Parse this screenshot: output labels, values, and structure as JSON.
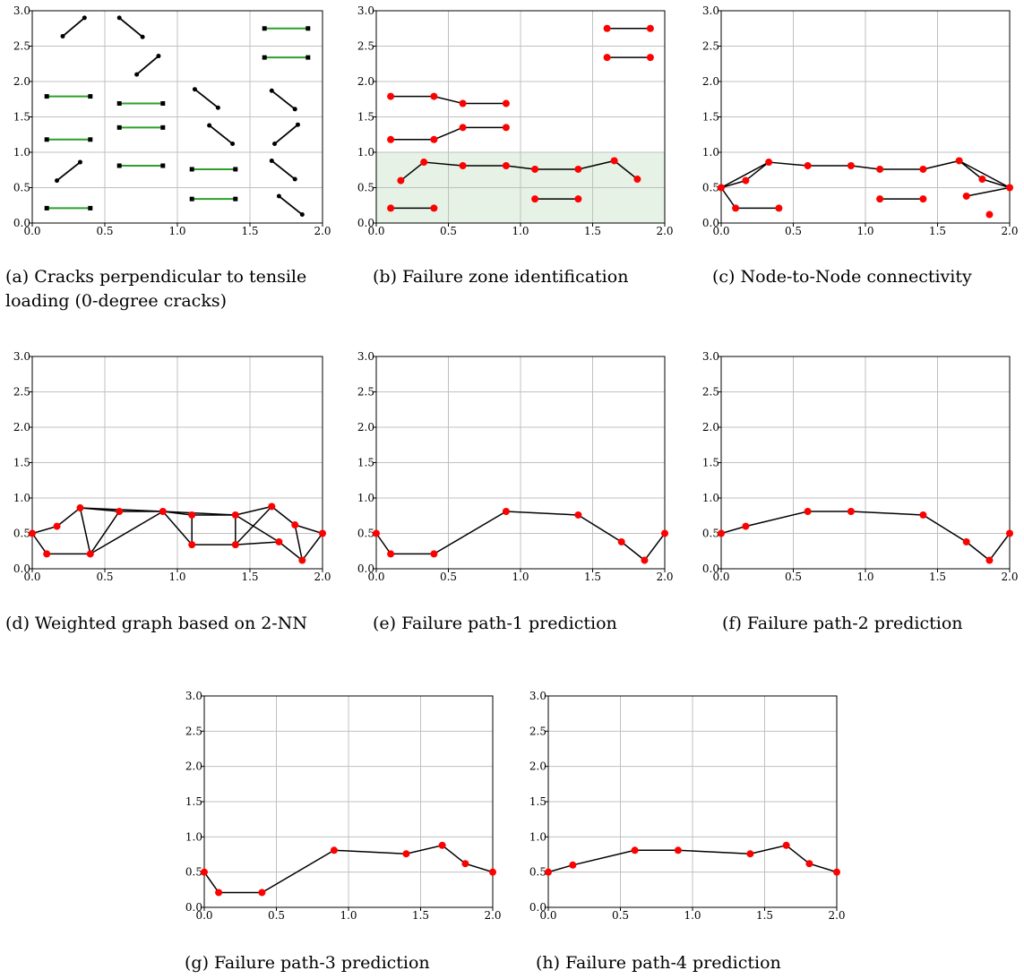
{
  "colors": {
    "node": "#ff0000",
    "edge": "#000000",
    "horizontal_crack": "#2ca02c",
    "crack_end_marker": "#000000",
    "failure_zone": "#e6f2e6",
    "grid": "#c0c0c0"
  },
  "chart_data": [
    {
      "type": "scatter",
      "subplot": "a",
      "caption": "(a) Cracks perpendicular to tensile loading (0-degree cracks)",
      "xlim": [
        0,
        2.0
      ],
      "ylim": [
        0,
        3.0
      ],
      "x_ticks": [
        "0.0",
        "0.5",
        "1.0",
        "1.5",
        "2.0"
      ],
      "y_ticks": [
        "0.0",
        "0.5",
        "1.0",
        "1.5",
        "2.0",
        "2.5",
        "3.0"
      ],
      "grid": true,
      "horizontal_cracks": [
        [
          [
            0.1,
            1.79
          ],
          [
            0.4,
            1.79
          ]
        ],
        [
          [
            0.1,
            1.18
          ],
          [
            0.4,
            1.18
          ]
        ],
        [
          [
            0.1,
            0.21
          ],
          [
            0.4,
            0.21
          ]
        ],
        [
          [
            0.6,
            1.69
          ],
          [
            0.9,
            1.69
          ]
        ],
        [
          [
            0.6,
            1.35
          ],
          [
            0.9,
            1.35
          ]
        ],
        [
          [
            0.6,
            0.81
          ],
          [
            0.9,
            0.81
          ]
        ],
        [
          [
            1.1,
            0.76
          ],
          [
            1.4,
            0.76
          ]
        ],
        [
          [
            1.1,
            0.34
          ],
          [
            1.4,
            0.34
          ]
        ],
        [
          [
            1.6,
            2.75
          ],
          [
            1.9,
            2.75
          ]
        ],
        [
          [
            1.6,
            2.34
          ],
          [
            1.9,
            2.34
          ]
        ]
      ],
      "inclined_cracks": [
        [
          [
            0.21,
            2.64
          ],
          [
            0.36,
            2.9
          ]
        ],
        [
          [
            0.6,
            2.9
          ],
          [
            0.76,
            2.63
          ]
        ],
        [
          [
            0.72,
            2.1
          ],
          [
            0.87,
            2.36
          ]
        ],
        [
          [
            0.17,
            0.6
          ],
          [
            0.33,
            0.86
          ]
        ],
        [
          [
            1.12,
            1.89
          ],
          [
            1.28,
            1.63
          ]
        ],
        [
          [
            1.22,
            1.38
          ],
          [
            1.38,
            1.12
          ]
        ],
        [
          [
            1.65,
            1.87
          ],
          [
            1.81,
            1.61
          ]
        ],
        [
          [
            1.67,
            1.12
          ],
          [
            1.83,
            1.39
          ]
        ],
        [
          [
            1.65,
            0.88
          ],
          [
            1.81,
            0.62
          ]
        ],
        [
          [
            1.7,
            0.38
          ],
          [
            1.86,
            0.12
          ]
        ]
      ]
    },
    {
      "type": "scatter",
      "subplot": "b",
      "caption": "(b) Failure zone identification",
      "xlim": [
        0,
        2.0
      ],
      "ylim": [
        0,
        3.0
      ],
      "x_ticks": [
        "0.0",
        "0.5",
        "1.0",
        "1.5",
        "2.0"
      ],
      "y_ticks": [
        "0.0",
        "0.5",
        "1.0",
        "1.5",
        "2.0",
        "2.5",
        "3.0"
      ],
      "grid": true,
      "failure_zone": {
        "x": [
          0,
          2.0
        ],
        "y": [
          0,
          1.0
        ]
      },
      "segments": [
        [
          [
            0.1,
            1.79
          ],
          [
            0.4,
            1.79
          ]
        ],
        [
          [
            0.4,
            1.79
          ],
          [
            0.6,
            1.69
          ]
        ],
        [
          [
            0.6,
            1.69
          ],
          [
            0.9,
            1.69
          ]
        ],
        [
          [
            0.1,
            1.18
          ],
          [
            0.4,
            1.18
          ]
        ],
        [
          [
            0.4,
            1.18
          ],
          [
            0.6,
            1.35
          ]
        ],
        [
          [
            0.6,
            1.35
          ],
          [
            0.9,
            1.35
          ]
        ],
        [
          [
            0.17,
            0.6
          ],
          [
            0.33,
            0.86
          ]
        ],
        [
          [
            0.33,
            0.86
          ],
          [
            0.6,
            0.81
          ]
        ],
        [
          [
            0.6,
            0.81
          ],
          [
            0.9,
            0.81
          ]
        ],
        [
          [
            0.9,
            0.81
          ],
          [
            1.1,
            0.76
          ]
        ],
        [
          [
            1.1,
            0.76
          ],
          [
            1.4,
            0.76
          ]
        ],
        [
          [
            1.4,
            0.76
          ],
          [
            1.65,
            0.88
          ]
        ],
        [
          [
            1.65,
            0.88
          ],
          [
            1.81,
            0.62
          ]
        ],
        [
          [
            0.1,
            0.21
          ],
          [
            0.4,
            0.21
          ]
        ],
        [
          [
            1.1,
            0.34
          ],
          [
            1.4,
            0.34
          ]
        ],
        [
          [
            1.6,
            2.75
          ],
          [
            1.9,
            2.75
          ]
        ],
        [
          [
            1.6,
            2.34
          ],
          [
            1.9,
            2.34
          ]
        ]
      ],
      "nodes": [
        [
          0.1,
          1.79
        ],
        [
          0.4,
          1.79
        ],
        [
          0.6,
          1.69
        ],
        [
          0.9,
          1.69
        ],
        [
          0.1,
          1.18
        ],
        [
          0.4,
          1.18
        ],
        [
          0.6,
          1.35
        ],
        [
          0.9,
          1.35
        ],
        [
          0.17,
          0.6
        ],
        [
          0.33,
          0.86
        ],
        [
          0.6,
          0.81
        ],
        [
          0.9,
          0.81
        ],
        [
          1.1,
          0.76
        ],
        [
          1.4,
          0.76
        ],
        [
          1.65,
          0.88
        ],
        [
          1.81,
          0.62
        ],
        [
          0.1,
          0.21
        ],
        [
          0.4,
          0.21
        ],
        [
          1.1,
          0.34
        ],
        [
          1.4,
          0.34
        ],
        [
          1.6,
          2.75
        ],
        [
          1.9,
          2.75
        ],
        [
          1.6,
          2.34
        ],
        [
          1.9,
          2.34
        ]
      ]
    },
    {
      "type": "scatter",
      "subplot": "c",
      "caption": "(c) Node-to-Node connectivity",
      "xlim": [
        0,
        2.0
      ],
      "ylim": [
        0,
        3.0
      ],
      "x_ticks": [
        "0.0",
        "0.5",
        "1.0",
        "1.5",
        "2.0"
      ],
      "y_ticks": [
        "0.0",
        "0.5",
        "1.0",
        "1.5",
        "2.0",
        "2.5",
        "3.0"
      ],
      "grid": true,
      "segments": [
        [
          [
            0,
            0.5
          ],
          [
            0.17,
            0.6
          ]
        ],
        [
          [
            0,
            0.5
          ],
          [
            0.33,
            0.86
          ]
        ],
        [
          [
            0,
            0.5
          ],
          [
            0.1,
            0.21
          ]
        ],
        [
          [
            0.17,
            0.6
          ],
          [
            0.33,
            0.86
          ]
        ],
        [
          [
            0.1,
            0.21
          ],
          [
            0.4,
            0.21
          ]
        ],
        [
          [
            0.33,
            0.86
          ],
          [
            0.6,
            0.81
          ]
        ],
        [
          [
            0.6,
            0.81
          ],
          [
            0.9,
            0.81
          ]
        ],
        [
          [
            0.9,
            0.81
          ],
          [
            1.1,
            0.76
          ]
        ],
        [
          [
            1.1,
            0.76
          ],
          [
            1.4,
            0.76
          ]
        ],
        [
          [
            1.4,
            0.76
          ],
          [
            1.65,
            0.88
          ]
        ],
        [
          [
            1.65,
            0.88
          ],
          [
            1.81,
            0.62
          ]
        ],
        [
          [
            1.81,
            0.62
          ],
          [
            2.0,
            0.5
          ]
        ],
        [
          [
            1.7,
            0.38
          ],
          [
            2.0,
            0.5
          ]
        ],
        [
          [
            1.65,
            0.88
          ],
          [
            2.0,
            0.5
          ]
        ],
        [
          [
            1.1,
            0.34
          ],
          [
            1.4,
            0.34
          ]
        ]
      ],
      "nodes": [
        [
          0,
          0.5
        ],
        [
          0.17,
          0.6
        ],
        [
          0.33,
          0.86
        ],
        [
          0.1,
          0.21
        ],
        [
          0.4,
          0.21
        ],
        [
          0.6,
          0.81
        ],
        [
          0.9,
          0.81
        ],
        [
          1.1,
          0.76
        ],
        [
          1.4,
          0.76
        ],
        [
          1.65,
          0.88
        ],
        [
          1.81,
          0.62
        ],
        [
          2.0,
          0.5
        ],
        [
          1.7,
          0.38
        ],
        [
          1.86,
          0.12
        ],
        [
          1.1,
          0.34
        ],
        [
          1.4,
          0.34
        ]
      ]
    },
    {
      "type": "scatter",
      "subplot": "d",
      "caption": "(d) Weighted graph based on 2-NN",
      "xlim": [
        0,
        2.0
      ],
      "ylim": [
        0,
        3.0
      ],
      "x_ticks": [
        "0.0",
        "0.5",
        "1.0",
        "1.5",
        "2.0"
      ],
      "y_ticks": [
        "0.0",
        "0.5",
        "1.0",
        "1.5",
        "2.0",
        "2.5",
        "3.0"
      ],
      "grid": true,
      "segments": [
        [
          [
            0,
            0.5
          ],
          [
            0.17,
            0.6
          ]
        ],
        [
          [
            0,
            0.5
          ],
          [
            0.1,
            0.21
          ]
        ],
        [
          [
            0.1,
            0.21
          ],
          [
            0.4,
            0.21
          ]
        ],
        [
          [
            0.17,
            0.6
          ],
          [
            0.33,
            0.86
          ]
        ],
        [
          [
            0.33,
            0.86
          ],
          [
            0.4,
            0.21
          ]
        ],
        [
          [
            0.4,
            0.21
          ],
          [
            0.6,
            0.81
          ]
        ],
        [
          [
            0.33,
            0.86
          ],
          [
            0.6,
            0.81
          ]
        ],
        [
          [
            0.33,
            0.86
          ],
          [
            0.9,
            0.81
          ]
        ],
        [
          [
            0.6,
            0.81
          ],
          [
            0.9,
            0.81
          ]
        ],
        [
          [
            0.4,
            0.21
          ],
          [
            0.9,
            0.81
          ]
        ],
        [
          [
            0.9,
            0.81
          ],
          [
            1.1,
            0.76
          ]
        ],
        [
          [
            0.9,
            0.81
          ],
          [
            1.1,
            0.34
          ]
        ],
        [
          [
            1.1,
            0.76
          ],
          [
            1.4,
            0.76
          ]
        ],
        [
          [
            1.1,
            0.34
          ],
          [
            1.4,
            0.34
          ]
        ],
        [
          [
            1.1,
            0.76
          ],
          [
            1.1,
            0.34
          ]
        ],
        [
          [
            1.4,
            0.76
          ],
          [
            1.4,
            0.34
          ]
        ],
        [
          [
            0.9,
            0.81
          ],
          [
            1.4,
            0.76
          ]
        ],
        [
          [
            1.4,
            0.76
          ],
          [
            1.65,
            0.88
          ]
        ],
        [
          [
            1.4,
            0.34
          ],
          [
            1.65,
            0.88
          ]
        ],
        [
          [
            1.4,
            0.34
          ],
          [
            1.7,
            0.38
          ]
        ],
        [
          [
            1.4,
            0.76
          ],
          [
            1.7,
            0.38
          ]
        ],
        [
          [
            1.65,
            0.88
          ],
          [
            1.81,
            0.62
          ]
        ],
        [
          [
            1.81,
            0.62
          ],
          [
            1.86,
            0.12
          ]
        ],
        [
          [
            1.7,
            0.38
          ],
          [
            1.86,
            0.12
          ]
        ],
        [
          [
            1.81,
            0.62
          ],
          [
            2.0,
            0.5
          ]
        ],
        [
          [
            1.86,
            0.12
          ],
          [
            2.0,
            0.5
          ]
        ]
      ],
      "nodes": [
        [
          0,
          0.5
        ],
        [
          0.1,
          0.21
        ],
        [
          0.17,
          0.6
        ],
        [
          0.33,
          0.86
        ],
        [
          0.4,
          0.21
        ],
        [
          0.6,
          0.81
        ],
        [
          0.9,
          0.81
        ],
        [
          1.1,
          0.76
        ],
        [
          1.1,
          0.34
        ],
        [
          1.4,
          0.76
        ],
        [
          1.4,
          0.34
        ],
        [
          1.65,
          0.88
        ],
        [
          1.7,
          0.38
        ],
        [
          1.81,
          0.62
        ],
        [
          1.86,
          0.12
        ],
        [
          2.0,
          0.5
        ]
      ]
    },
    {
      "type": "line",
      "subplot": "e",
      "caption": "(e) Failure path-1 prediction",
      "xlim": [
        0,
        2.0
      ],
      "ylim": [
        0,
        3.0
      ],
      "x_ticks": [
        "0.0",
        "0.5",
        "1.0",
        "1.5",
        "2.0"
      ],
      "y_ticks": [
        "0.0",
        "0.5",
        "1.0",
        "1.5",
        "2.0",
        "2.5",
        "3.0"
      ],
      "grid": true,
      "path": [
        [
          0,
          0.5
        ],
        [
          0.1,
          0.21
        ],
        [
          0.4,
          0.21
        ],
        [
          0.9,
          0.81
        ],
        [
          1.4,
          0.76
        ],
        [
          1.7,
          0.38
        ],
        [
          1.86,
          0.12
        ],
        [
          2.0,
          0.5
        ]
      ]
    },
    {
      "type": "line",
      "subplot": "f",
      "caption": "(f) Failure path-2 prediction",
      "xlim": [
        0,
        2.0
      ],
      "ylim": [
        0,
        3.0
      ],
      "x_ticks": [
        "0.0",
        "0.5",
        "1.0",
        "1.5",
        "2.0"
      ],
      "y_ticks": [
        "0.0",
        "0.5",
        "1.0",
        "1.5",
        "2.0",
        "2.5",
        "3.0"
      ],
      "grid": true,
      "path": [
        [
          0,
          0.5
        ],
        [
          0.17,
          0.6
        ],
        [
          0.6,
          0.81
        ],
        [
          0.9,
          0.81
        ],
        [
          1.4,
          0.76
        ],
        [
          1.7,
          0.38
        ],
        [
          1.86,
          0.12
        ],
        [
          2.0,
          0.5
        ]
      ]
    },
    {
      "type": "line",
      "subplot": "g",
      "caption": "(g) Failure path-3 prediction",
      "xlim": [
        0,
        2.0
      ],
      "ylim": [
        0,
        3.0
      ],
      "x_ticks": [
        "0.0",
        "0.5",
        "1.0",
        "1.5",
        "2.0"
      ],
      "y_ticks": [
        "0.0",
        "0.5",
        "1.0",
        "1.5",
        "2.0",
        "2.5",
        "3.0"
      ],
      "grid": true,
      "path": [
        [
          0,
          0.5
        ],
        [
          0.1,
          0.21
        ],
        [
          0.4,
          0.21
        ],
        [
          0.9,
          0.81
        ],
        [
          1.4,
          0.76
        ],
        [
          1.65,
          0.88
        ],
        [
          1.81,
          0.62
        ],
        [
          2.0,
          0.5
        ]
      ]
    },
    {
      "type": "line",
      "subplot": "h",
      "caption": "(h) Failure path-4 prediction",
      "xlim": [
        0,
        2.0
      ],
      "ylim": [
        0,
        3.0
      ],
      "x_ticks": [
        "0.0",
        "0.5",
        "1.0",
        "1.5",
        "2.0"
      ],
      "y_ticks": [
        "0.0",
        "0.5",
        "1.0",
        "1.5",
        "2.0",
        "2.5",
        "3.0"
      ],
      "grid": true,
      "path": [
        [
          0,
          0.5
        ],
        [
          0.17,
          0.6
        ],
        [
          0.6,
          0.81
        ],
        [
          0.9,
          0.81
        ],
        [
          1.4,
          0.76
        ],
        [
          1.65,
          0.88
        ],
        [
          1.81,
          0.62
        ],
        [
          2.0,
          0.5
        ]
      ]
    }
  ]
}
